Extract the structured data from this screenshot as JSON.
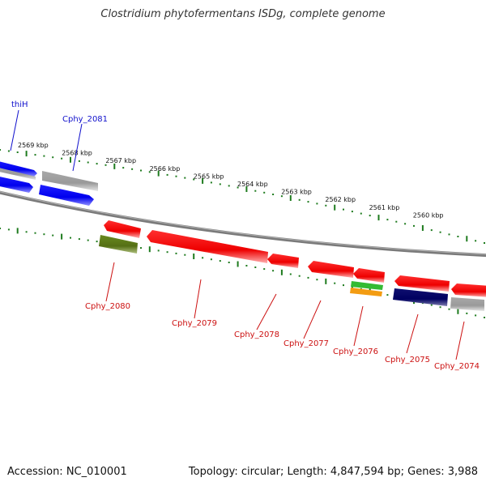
{
  "title": "Clostridium phytofermentans ISDg, complete genome",
  "footer": {
    "accession": "Accession: NC_010001",
    "topology": "Topology: circular; Length: 4,847,594 bp; Genes: 3,988"
  },
  "colors": {
    "forward_gene": "#1a1aff",
    "reverse_gene": "#ff1010",
    "pseudo_gene": "#b0b0b0",
    "backbone": "#808080",
    "tick": "#1e7b1e",
    "label_forward": "#1010cc",
    "label_reverse": "#cc1010"
  },
  "scale": {
    "unit": "kbp",
    "tick_labels": [
      "2569 kbp",
      "2568 kbp",
      "2567 kbp",
      "2566 kbp",
      "2565 kbp",
      "2564 kbp",
      "2563 kbp",
      "2562 kbp",
      "2561 kbp",
      "2560 kbp"
    ]
  },
  "gene_labels": [
    {
      "name": "thiH",
      "strand": "forward"
    },
    {
      "name": "Cphy_2081",
      "strand": "forward"
    },
    {
      "name": "Cphy_2080",
      "strand": "reverse"
    },
    {
      "name": "Cphy_2079",
      "strand": "reverse"
    },
    {
      "name": "Cphy_2078",
      "strand": "reverse"
    },
    {
      "name": "Cphy_2077",
      "strand": "reverse"
    },
    {
      "name": "Cphy_2076",
      "strand": "reverse"
    },
    {
      "name": "Cphy_2075",
      "strand": "reverse"
    },
    {
      "name": "Cphy_2074",
      "strand": "reverse"
    }
  ]
}
